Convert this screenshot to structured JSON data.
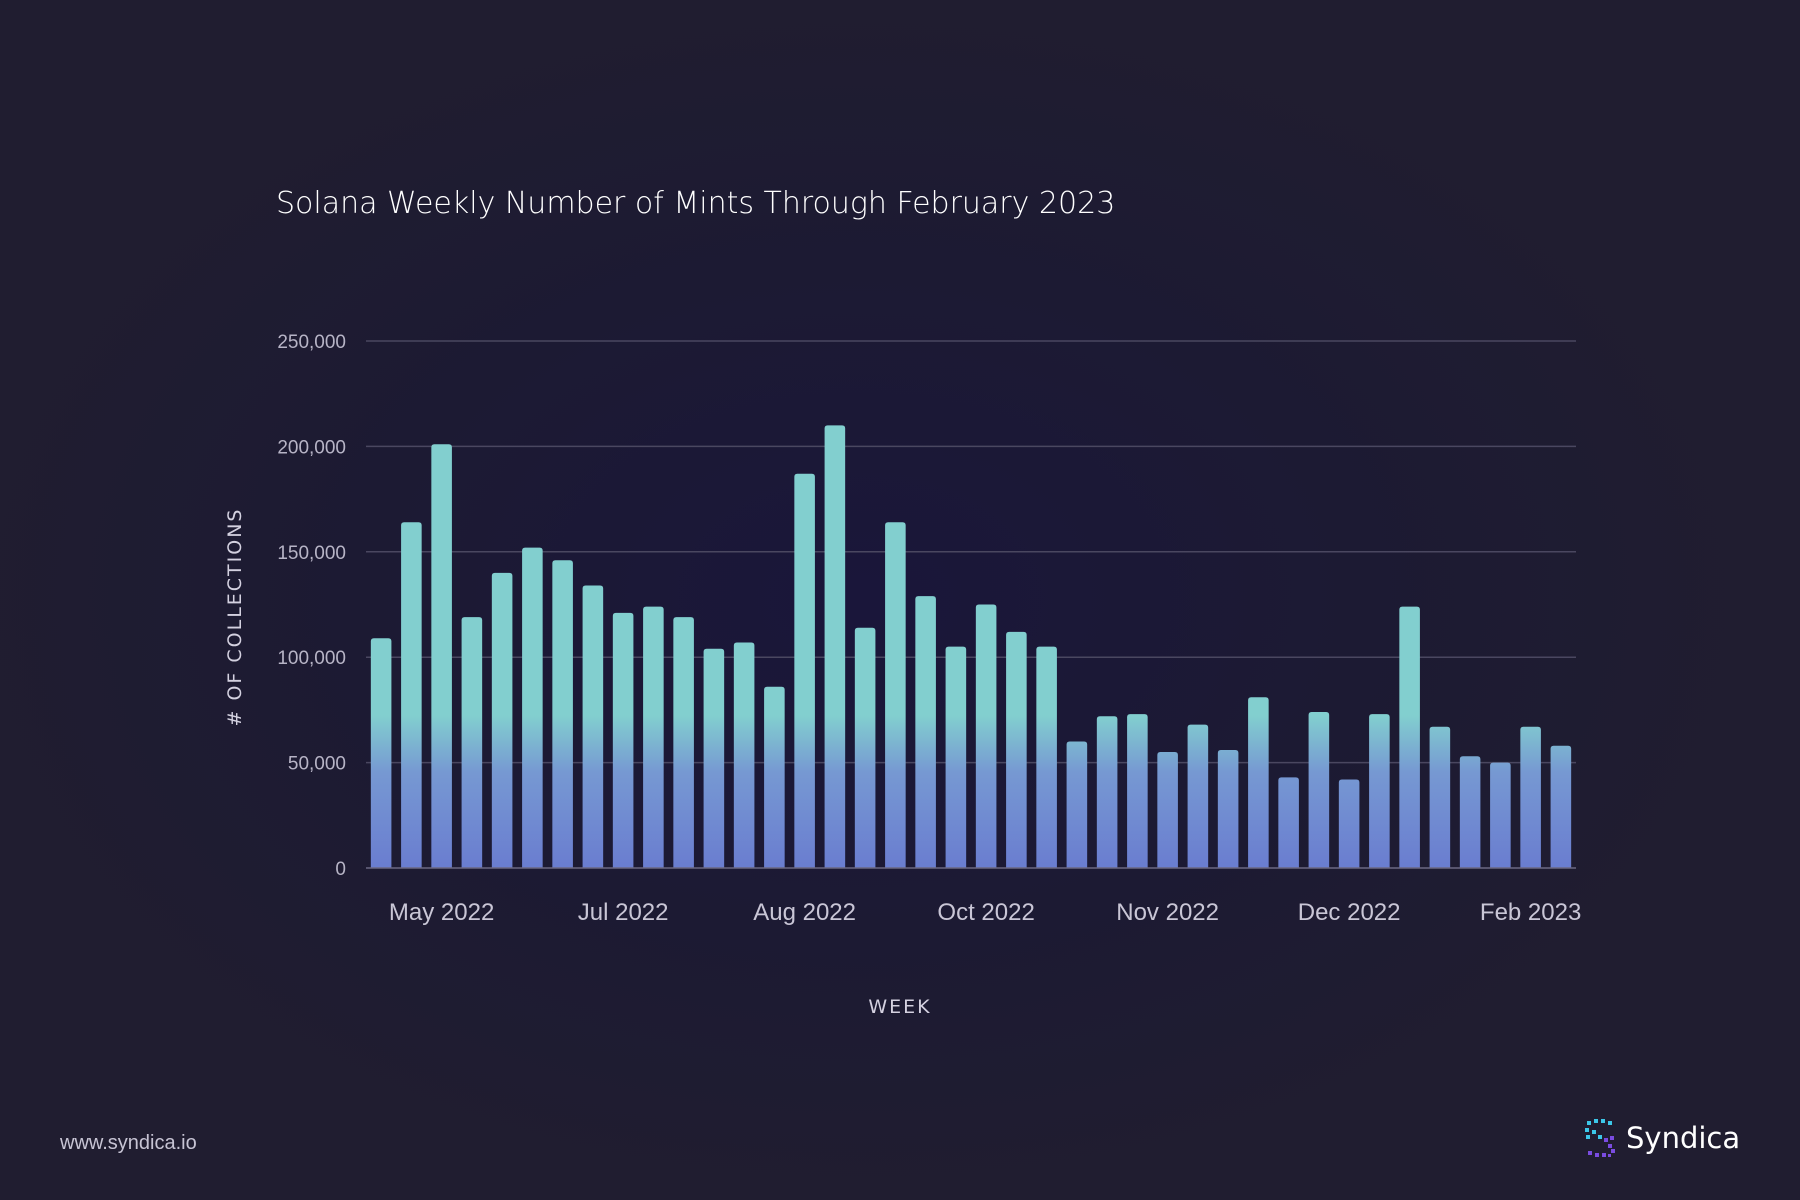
{
  "chart_data": {
    "type": "bar",
    "title": "Solana Weekly Number of Mints Through February 2023",
    "xlabel": "WEEK",
    "ylabel": "# OF COLLECTIONS",
    "ylim": [
      0,
      250000
    ],
    "yticks": [
      0,
      50000,
      100000,
      150000,
      200000,
      250000
    ],
    "ytick_labels": [
      "0",
      "50,000",
      "100,000",
      "150,000",
      "200,000",
      "250,000"
    ],
    "grid": true,
    "xtick_labels": [
      {
        "label": "May 2022",
        "index": 2
      },
      {
        "label": "Jul 2022",
        "index": 8
      },
      {
        "label": "Aug 2022",
        "index": 14
      },
      {
        "label": "Oct 2022",
        "index": 20
      },
      {
        "label": "Nov 2022",
        "index": 26
      },
      {
        "label": "Dec 2022",
        "index": 32
      },
      {
        "label": "Feb 2023",
        "index": 38
      }
    ],
    "values": [
      109000,
      164000,
      201000,
      119000,
      140000,
      152000,
      146000,
      134000,
      121000,
      124000,
      119000,
      104000,
      107000,
      86000,
      187000,
      210000,
      114000,
      164000,
      129000,
      105000,
      125000,
      112000,
      105000,
      60000,
      72000,
      73000,
      55000,
      68000,
      56000,
      81000,
      43000,
      74000,
      42000,
      73000,
      124000,
      67000,
      53000,
      50000,
      67000,
      58000
    ],
    "bar_gradient": {
      "top": "#82cfcf",
      "bottom": "#6a7dd0"
    }
  },
  "footer": {
    "url": "www.syndica.io",
    "brand": "Syndica",
    "brand_icon": "syndica-logo-icon",
    "accent": "#3cc7e8"
  }
}
